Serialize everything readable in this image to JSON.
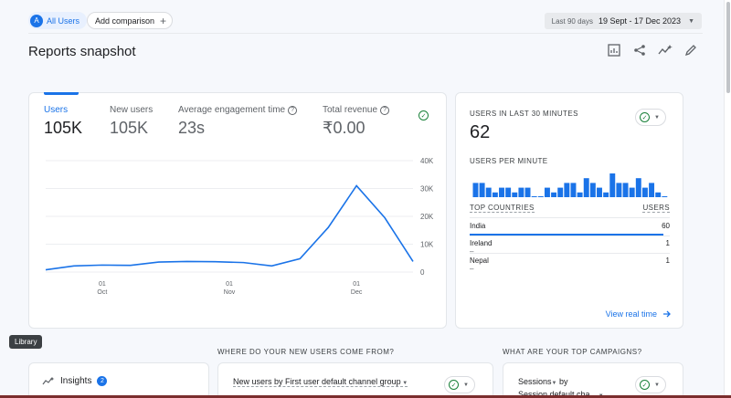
{
  "header": {
    "user_segment": "All Users",
    "segment_initial": "A",
    "add_comparison": "Add comparison",
    "date_label": "Last 90 days",
    "date_value": "19 Sept - 17 Dec 2023"
  },
  "page": {
    "title": "Reports snapshot"
  },
  "metrics": [
    {
      "label": "Users",
      "value": "105K"
    },
    {
      "label": "New users",
      "value": "105K"
    },
    {
      "label": "Average engagement time",
      "value": "23s"
    },
    {
      "label": "Total revenue",
      "value": "₹0.00"
    }
  ],
  "chart_data": {
    "type": "line",
    "series": [
      {
        "name": "Users",
        "values": [
          800,
          2200,
          2500,
          2400,
          3600,
          3800,
          3700,
          3400,
          2200,
          4800,
          16000,
          31000,
          19500,
          3800
        ]
      }
    ],
    "x_ticks": [
      {
        "day": "01",
        "month": "Oct",
        "index": 2
      },
      {
        "day": "01",
        "month": "Nov",
        "index": 6.5
      },
      {
        "day": "01",
        "month": "Dec",
        "index": 11
      }
    ],
    "y_ticks": [
      "40K",
      "30K",
      "20K",
      "10K",
      "0"
    ],
    "ylim": [
      0,
      40000
    ],
    "color": "#1a73e8"
  },
  "realtime": {
    "title": "USERS IN LAST 30 MINUTES",
    "value": "62",
    "per_minute_label": "USERS PER MINUTE",
    "per_minute": [
      3,
      3,
      2,
      1,
      2,
      2,
      1,
      2,
      2,
      0,
      0,
      2,
      1,
      2,
      3,
      3,
      1,
      4,
      3,
      2,
      1,
      5,
      3,
      3,
      2,
      4,
      2,
      3,
      1,
      0
    ],
    "top_countries_label": "TOP COUNTRIES",
    "users_label": "USERS",
    "countries": [
      {
        "name": "India",
        "users": "60",
        "share": 1.0
      },
      {
        "name": "Ireland",
        "users": "1",
        "share": 0.02
      },
      {
        "name": "Nepal",
        "users": "1",
        "share": 0.02
      }
    ],
    "view_realtime": "View real time"
  },
  "tooltip": "Library",
  "sections": {
    "new_users_question": "WHERE DO YOUR NEW USERS COME FROM?",
    "campaigns_question": "WHAT ARE YOUR TOP CAMPAIGNS?"
  },
  "insights": {
    "label": "Insights",
    "count": "2"
  },
  "new_users_card": {
    "metric": "New users",
    "dimension": " by First user default channel group"
  },
  "campaigns_card": {
    "metric": "Sessions",
    "by": " by",
    "dimension": "Session default cha..."
  }
}
